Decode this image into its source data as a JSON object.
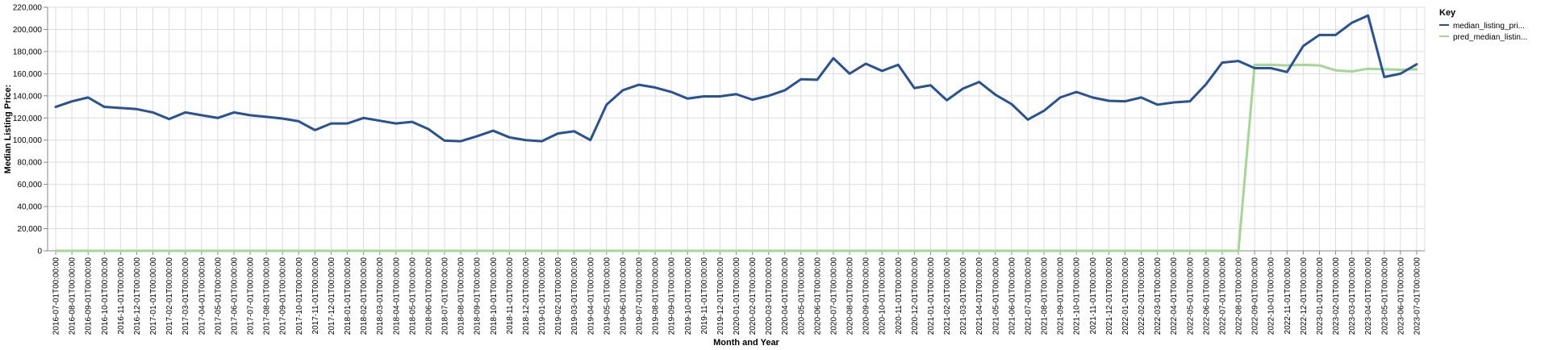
{
  "chart_data": {
    "type": "line",
    "xlabel": "Month and Year",
    "ylabel": "Median Listing Price:",
    "ylim": [
      0,
      220000
    ],
    "yticks": [
      "0",
      "20,000",
      "40,000",
      "60,000",
      "80,000",
      "100,000",
      "120,000",
      "140,000",
      "160,000",
      "180,000",
      "200,000",
      "220,000"
    ],
    "grid": true,
    "legend": {
      "title": "Key",
      "placement": "top-right"
    },
    "x": [
      "2016-07-01T00:00:00",
      "2016-08-01T00:00:00",
      "2016-09-01T00:00:00",
      "2016-10-01T00:00:00",
      "2016-11-01T00:00:00",
      "2016-12-01T00:00:00",
      "2017-01-01T00:00:00",
      "2017-02-01T00:00:00",
      "2017-03-01T00:00:00",
      "2017-04-01T00:00:00",
      "2017-05-01T00:00:00",
      "2017-06-01T00:00:00",
      "2017-07-01T00:00:00",
      "2017-08-01T00:00:00",
      "2017-09-01T00:00:00",
      "2017-10-01T00:00:00",
      "2017-11-01T00:00:00",
      "2017-12-01T00:00:00",
      "2018-01-01T00:00:00",
      "2018-02-01T00:00:00",
      "2018-03-01T00:00:00",
      "2018-04-01T00:00:00",
      "2018-05-01T00:00:00",
      "2018-06-01T00:00:00",
      "2018-07-01T00:00:00",
      "2018-08-01T00:00:00",
      "2018-09-01T00:00:00",
      "2018-10-01T00:00:00",
      "2018-11-01T00:00:00",
      "2018-12-01T00:00:00",
      "2019-01-01T00:00:00",
      "2019-02-01T00:00:00",
      "2019-03-01T00:00:00",
      "2019-04-01T00:00:00",
      "2019-05-01T00:00:00",
      "2019-06-01T00:00:00",
      "2019-07-01T00:00:00",
      "2019-08-01T00:00:00",
      "2019-09-01T00:00:00",
      "2019-10-01T00:00:00",
      "2019-11-01T00:00:00",
      "2019-12-01T00:00:00",
      "2020-01-01T00:00:00",
      "2020-02-01T00:00:00",
      "2020-03-01T00:00:00",
      "2020-04-01T00:00:00",
      "2020-05-01T00:00:00",
      "2020-06-01T00:00:00",
      "2020-07-01T00:00:00",
      "2020-08-01T00:00:00",
      "2020-09-01T00:00:00",
      "2020-10-01T00:00:00",
      "2020-11-01T00:00:00",
      "2020-12-01T00:00:00",
      "2021-01-01T00:00:00",
      "2021-02-01T00:00:00",
      "2021-03-01T00:00:00",
      "2021-04-01T00:00:00",
      "2021-05-01T00:00:00",
      "2021-06-01T00:00:00",
      "2021-07-01T00:00:00",
      "2021-08-01T00:00:00",
      "2021-09-01T00:00:00",
      "2021-10-01T00:00:00",
      "2021-11-01T00:00:00",
      "2021-12-01T00:00:00",
      "2022-01-01T00:00:00",
      "2022-02-01T00:00:00",
      "2022-03-01T00:00:00",
      "2022-04-01T00:00:00",
      "2022-05-01T00:00:00",
      "2022-06-01T00:00:00",
      "2022-07-01T00:00:00",
      "2022-08-01T00:00:00",
      "2022-09-01T00:00:00",
      "2022-10-01T00:00:00",
      "2022-11-01T00:00:00",
      "2022-12-01T00:00:00",
      "2023-01-01T00:00:00",
      "2023-02-01T00:00:00",
      "2023-03-01T00:00:00",
      "2023-04-01T00:00:00",
      "2023-05-01T00:00:00",
      "2023-06-01T00:00:00",
      "2023-07-01T00:00:00"
    ],
    "series": [
      {
        "name": "median_listing_pri...",
        "color": "#25529a",
        "values": [
          130000,
          135000,
          138500,
          130000,
          129000,
          128000,
          125000,
          119000,
          125000,
          122500,
          120000,
          125000,
          122500,
          121000,
          119500,
          117000,
          109000,
          115000,
          115000,
          120000,
          117500,
          115000,
          116500,
          110000,
          99500,
          99000,
          103500,
          108500,
          102500,
          100000,
          99000,
          106000,
          108000,
          100000,
          132000,
          145000,
          150000,
          147500,
          143500,
          137500,
          139500,
          139500,
          141500,
          136500,
          140000,
          145000,
          155000,
          154500,
          174000,
          160000,
          169000,
          162500,
          168000,
          147000,
          149500,
          136000,
          146500,
          152500,
          141000,
          132500,
          118500,
          126500,
          138500,
          143500,
          138500,
          135500,
          135000,
          138500,
          132000,
          134000,
          135000,
          150500,
          170000,
          171500,
          165000,
          165000,
          161500,
          185000,
          195000,
          195000,
          206000,
          212500,
          157000,
          160000,
          168500
        ]
      },
      {
        "name": "pred_median_listin...",
        "color": "#a2d892",
        "values": [
          0,
          0,
          0,
          0,
          0,
          0,
          0,
          0,
          0,
          0,
          0,
          0,
          0,
          0,
          0,
          0,
          0,
          0,
          0,
          0,
          0,
          0,
          0,
          0,
          0,
          0,
          0,
          0,
          0,
          0,
          0,
          0,
          0,
          0,
          0,
          0,
          0,
          0,
          0,
          0,
          0,
          0,
          0,
          0,
          0,
          0,
          0,
          0,
          0,
          0,
          0,
          0,
          0,
          0,
          0,
          0,
          0,
          0,
          0,
          0,
          0,
          0,
          0,
          0,
          0,
          0,
          0,
          0,
          0,
          0,
          0,
          0,
          0,
          0,
          168000,
          168000,
          167500,
          168000,
          167500,
          163000,
          162000,
          164500,
          164000,
          163500,
          164000
        ]
      }
    ]
  }
}
